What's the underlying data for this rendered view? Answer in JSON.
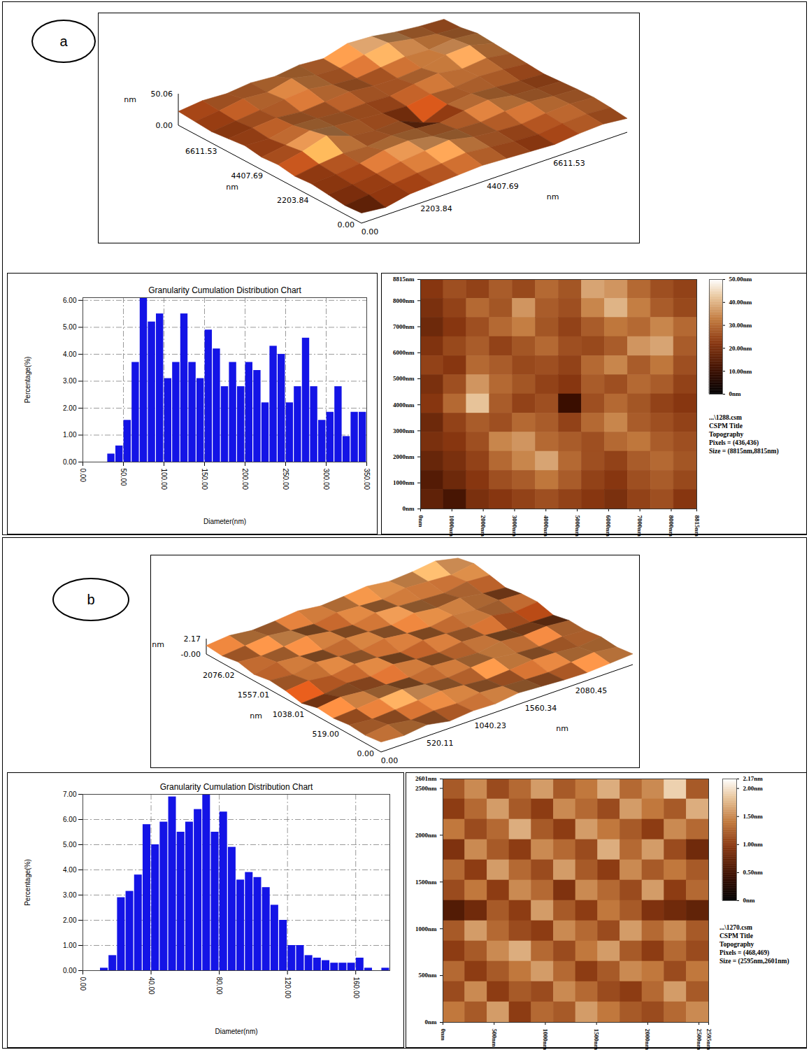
{
  "chart_data": [
    {
      "panel_label": "a",
      "type": "surface3d",
      "x_label": "nm",
      "y_label": "nm",
      "z_label": "nm",
      "xlim": [
        0,
        8815
      ],
      "ylim": [
        0,
        8815
      ],
      "zlim": [
        0,
        50.06
      ],
      "xticks": [
        {
          "value": 0,
          "label": "0.00"
        },
        2203.84,
        4407.69,
        6611.53
      ],
      "yticks": [
        {
          "value": 0,
          "label": "0.00"
        },
        2203.84,
        4407.69,
        6611.53
      ],
      "zticks": [
        {
          "value": 0,
          "label": "0.00"
        },
        50.06
      ]
    },
    {
      "panel_label": "a",
      "type": "histogram",
      "title": "Granularity Cumulation Distribution Chart",
      "x_label": "Diameter(nm)",
      "y_label": "Percentage(%)",
      "color": "#1414e6",
      "grid": true,
      "bins": [
        30,
        40,
        50,
        60,
        70,
        80,
        90,
        100,
        110,
        120,
        130,
        140,
        150,
        160,
        170,
        180,
        190,
        200,
        210,
        220,
        230,
        240,
        250,
        260,
        270,
        280,
        290,
        300,
        310,
        320,
        330,
        340,
        350
      ],
      "values": [
        0.3,
        0.6,
        1.55,
        3.7,
        6.1,
        5.2,
        5.5,
        3.1,
        3.7,
        5.5,
        3.7,
        3.1,
        4.9,
        4.2,
        2.8,
        3.7,
        2.8,
        3.7,
        3.4,
        2.2,
        4.3,
        4.0,
        2.2,
        2.8,
        4.6,
        2.8,
        1.55,
        1.85,
        2.8,
        0.95,
        1.85,
        1.85
      ],
      "xlim": [
        0,
        350
      ],
      "xticks": [
        {
          "value": 0,
          "label": "0.00"
        },
        {
          "value": 50,
          "label": "50.00"
        },
        {
          "value": 100,
          "label": "100.00"
        },
        {
          "value": 150,
          "label": "150.00"
        },
        {
          "value": 200,
          "label": "200.00"
        },
        {
          "value": 250,
          "label": "250.00"
        },
        {
          "value": 300,
          "label": "300.00"
        },
        {
          "value": 350,
          "label": "350.00"
        }
      ],
      "ylim": [
        0,
        6.1
      ],
      "yticks": [
        {
          "value": 0,
          "label": "0.00"
        },
        {
          "value": 1,
          "label": "1.00"
        },
        {
          "value": 2,
          "label": "2.00"
        },
        {
          "value": 3,
          "label": "3.00"
        },
        {
          "value": 4,
          "label": "4.00"
        },
        {
          "value": 5,
          "label": "5.00"
        },
        {
          "value": 6,
          "label": "6.00"
        }
      ]
    },
    {
      "panel_label": "a",
      "type": "heatmap",
      "xlim": [
        0,
        8815
      ],
      "ylim": [
        0,
        8815
      ],
      "xticks": [
        {
          "value": 0,
          "label": "0nm"
        },
        {
          "value": 1000,
          "label": "1000nm"
        },
        {
          "value": 2000,
          "label": "2000nm"
        },
        {
          "value": 3000,
          "label": "3000nm"
        },
        {
          "value": 4000,
          "label": "4000nm"
        },
        {
          "value": 5000,
          "label": "5000nm"
        },
        {
          "value": 6000,
          "label": "6000nm"
        },
        {
          "value": 7000,
          "label": "7000nm"
        },
        {
          "value": 8000,
          "label": "8000nm"
        },
        {
          "value": 8815,
          "label": "8815nm"
        }
      ],
      "yticks": [
        {
          "value": 0,
          "label": "0nm"
        },
        {
          "value": 1000,
          "label": "1000nm"
        },
        {
          "value": 2000,
          "label": "2000nm"
        },
        {
          "value": 3000,
          "label": "3000nm"
        },
        {
          "value": 4000,
          "label": "4000nm"
        },
        {
          "value": 5000,
          "label": "5000nm"
        },
        {
          "value": 6000,
          "label": "6000nm"
        },
        {
          "value": 7000,
          "label": "7000nm"
        },
        {
          "value": 8000,
          "label": "8000nm"
        },
        {
          "value": 8815,
          "label": "8815nm"
        }
      ],
      "z": [
        [
          22,
          26,
          24,
          28,
          25,
          30,
          27,
          38,
          36,
          30,
          26,
          24
        ],
        [
          20,
          24,
          30,
          27,
          36,
          28,
          26,
          34,
          40,
          33,
          28,
          25
        ],
        [
          18,
          22,
          26,
          30,
          33,
          27,
          24,
          28,
          32,
          30,
          34,
          30
        ],
        [
          21,
          25,
          28,
          24,
          27,
          30,
          26,
          25,
          28,
          36,
          38,
          28
        ],
        [
          24,
          22,
          30,
          28,
          25,
          26,
          24,
          30,
          34,
          28,
          32,
          26
        ],
        [
          20,
          26,
          36,
          30,
          27,
          24,
          22,
          28,
          26,
          30,
          28,
          24
        ],
        [
          22,
          30,
          42,
          28,
          24,
          26,
          10,
          26,
          30,
          27,
          24,
          22
        ],
        [
          18,
          24,
          28,
          26,
          30,
          28,
          24,
          30,
          34,
          28,
          26,
          24
        ],
        [
          20,
          22,
          26,
          34,
          36,
          30,
          28,
          26,
          30,
          32,
          28,
          26
        ],
        [
          17,
          20,
          24,
          30,
          34,
          38,
          30,
          26,
          24,
          28,
          30,
          27
        ],
        [
          14,
          18,
          22,
          26,
          28,
          32,
          28,
          24,
          22,
          26,
          28,
          25
        ],
        [
          16,
          12,
          20,
          22,
          24,
          26,
          24,
          22,
          20,
          24,
          26,
          22
        ]
      ],
      "colorbar": {
        "range": [
          0,
          50
        ],
        "ticks": [
          {
            "value": 0,
            "label": "0nm"
          },
          {
            "value": 10,
            "label": "10.00nm"
          },
          {
            "value": 20,
            "label": "20.00nm"
          },
          {
            "value": 30,
            "label": "30.00nm"
          },
          {
            "value": 40,
            "label": "40.00nm"
          },
          {
            "value": 50,
            "label": "50.00nm"
          }
        ]
      },
      "info": [
        "...\\1288.csm",
        "CSPM Title",
        "Topography",
        "Pixels = (436,436)",
        "Size = (8815nm,8815nm)"
      ]
    },
    {
      "panel_label": "b",
      "type": "surface3d",
      "x_label": "nm",
      "y_label": "nm",
      "z_label": "nm",
      "xlim": [
        0,
        2595
      ],
      "ylim": [
        0,
        2601
      ],
      "zlim": [
        0,
        2.17
      ],
      "xticks": [
        {
          "value": 0,
          "label": "0.00"
        },
        520.11,
        1040.23,
        1560.34,
        2080.45
      ],
      "yticks": [
        {
          "value": 0,
          "label": "0.00"
        },
        {
          "value": 519,
          "label": "519.00"
        },
        1038.01,
        1557.01,
        2076.02
      ],
      "zticks": [
        {
          "value": 0,
          "label": "-0.00"
        },
        2.17
      ]
    },
    {
      "panel_label": "b",
      "type": "histogram",
      "title": "Granularity Cumulation Distribution Chart",
      "x_label": "Diameter(nm)",
      "y_label": "Percentage(%)",
      "color": "#1414e6",
      "grid": true,
      "bins": [
        10,
        15,
        20,
        25,
        30,
        35,
        40,
        45,
        50,
        55,
        60,
        65,
        70,
        75,
        80,
        85,
        90,
        95,
        100,
        105,
        110,
        115,
        120,
        125,
        130,
        135,
        140,
        145,
        150,
        155,
        160,
        165,
        170,
        175,
        180
      ],
      "values": [
        0.1,
        0.6,
        2.9,
        3.15,
        3.8,
        5.8,
        5.0,
        5.9,
        6.9,
        5.5,
        5.9,
        6.4,
        7.0,
        5.5,
        6.3,
        4.9,
        3.6,
        3.9,
        3.7,
        3.3,
        2.6,
        2.0,
        1.0,
        1.0,
        0.6,
        0.5,
        0.4,
        0.3,
        0.3,
        0.3,
        0.5,
        0.1,
        0,
        0.1
      ],
      "xlim": [
        0,
        180
      ],
      "xticks": [
        {
          "value": 0,
          "label": "0.00"
        },
        {
          "value": 40,
          "label": "40.00"
        },
        {
          "value": 80,
          "label": "80.00"
        },
        {
          "value": 120,
          "label": "120.00"
        },
        {
          "value": 160,
          "label": "160.00"
        }
      ],
      "ylim": [
        0,
        7
      ],
      "yticks": [
        {
          "value": 0,
          "label": "0.00"
        },
        {
          "value": 1,
          "label": "1.00"
        },
        {
          "value": 2,
          "label": "2.00"
        },
        {
          "value": 3,
          "label": "3.00"
        },
        {
          "value": 4,
          "label": "4.00"
        },
        {
          "value": 5,
          "label": "5.00"
        },
        {
          "value": 6,
          "label": "6.00"
        },
        {
          "value": 7,
          "label": "7.00"
        }
      ]
    },
    {
      "panel_label": "b",
      "type": "heatmap",
      "xlim": [
        0,
        2595
      ],
      "ylim": [
        0,
        2601
      ],
      "xticks": [
        {
          "value": 0,
          "label": "0nm"
        },
        {
          "value": 500,
          "label": "500nm"
        },
        {
          "value": 1000,
          "label": "1000nm"
        },
        {
          "value": 1500,
          "label": "1500nm"
        },
        {
          "value": 2000,
          "label": "2000nm"
        },
        {
          "value": 2500,
          "label": "2500nm"
        },
        {
          "value": 2595,
          "label": "2595nm"
        }
      ],
      "yticks": [
        {
          "value": 0,
          "label": "0nm"
        },
        {
          "value": 500,
          "label": "500nm"
        },
        {
          "value": 1000,
          "label": "1000nm"
        },
        {
          "value": 1500,
          "label": "1500nm"
        },
        {
          "value": 2000,
          "label": "2000nm"
        },
        {
          "value": 2500,
          "label": "2500nm"
        },
        {
          "value": 2601,
          "label": "2601nm"
        }
      ],
      "z": [
        [
          1.2,
          1.5,
          1.1,
          1.3,
          1.6,
          1.2,
          1.4,
          1.7,
          1.3,
          1.5,
          1.9,
          1.2
        ],
        [
          1.0,
          1.3,
          1.6,
          1.2,
          1.0,
          1.5,
          1.3,
          1.1,
          1.6,
          1.4,
          1.2,
          1.7
        ],
        [
          1.4,
          1.1,
          1.3,
          1.7,
          1.2,
          1.0,
          1.6,
          1.4,
          1.2,
          1.0,
          1.5,
          1.3
        ],
        [
          0.9,
          1.5,
          1.2,
          1.0,
          1.5,
          1.3,
          1.1,
          1.7,
          1.3,
          1.6,
          1.1,
          0.8
        ],
        [
          1.3,
          1.0,
          1.6,
          1.3,
          1.1,
          1.6,
          1.2,
          1.0,
          1.5,
          1.2,
          1.4,
          1.2
        ],
        [
          1.1,
          1.4,
          1.0,
          1.5,
          1.3,
          0.9,
          1.5,
          1.3,
          1.1,
          1.6,
          1.0,
          1.3
        ],
        [
          0.6,
          0.8,
          1.2,
          1.0,
          1.6,
          1.2,
          1.0,
          1.4,
          1.2,
          0.9,
          0.8,
          0.7
        ],
        [
          1.2,
          1.6,
          1.3,
          1.1,
          1.0,
          1.5,
          1.3,
          1.1,
          1.6,
          1.3,
          1.5,
          1.2
        ],
        [
          1.0,
          1.2,
          1.5,
          1.7,
          1.3,
          1.1,
          1.4,
          1.6,
          1.2,
          1.0,
          1.3,
          1.1
        ],
        [
          1.3,
          1.0,
          1.2,
          1.4,
          1.6,
          1.3,
          1.0,
          1.2,
          1.5,
          1.4,
          1.1,
          1.4
        ],
        [
          1.1,
          1.5,
          1.0,
          1.2,
          1.1,
          1.5,
          1.3,
          1.1,
          1.0,
          1.3,
          1.6,
          1.2
        ],
        [
          1.4,
          1.2,
          1.6,
          1.0,
          1.3,
          1.2,
          1.6,
          1.4,
          1.2,
          1.1,
          1.3,
          1.5
        ]
      ],
      "colorbar": {
        "range": [
          0,
          2.17
        ],
        "ticks": [
          {
            "value": 0,
            "label": "0nm"
          },
          {
            "value": 0.5,
            "label": "0.50nm"
          },
          {
            "value": 1,
            "label": "1.00nm"
          },
          {
            "value": 1.5,
            "label": "1.50nm"
          },
          {
            "value": 2,
            "label": "2.00nm"
          },
          {
            "value": 2.17,
            "label": "2.17nm"
          }
        ]
      },
      "info": [
        "...\\1270.csm",
        "CSPM Title",
        "Topography",
        "Pixels = (468,469)",
        "Size = (2595nm,2601nm)"
      ]
    }
  ]
}
